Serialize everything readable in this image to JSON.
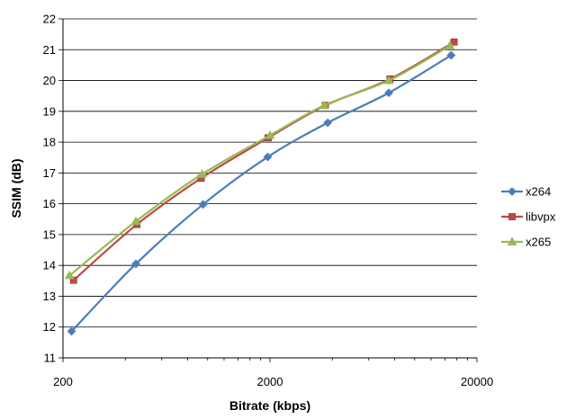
{
  "chart_data": {
    "type": "line",
    "title": "",
    "xlabel": "Bitrate (kbps)",
    "ylabel": "SSIM (dB)",
    "x_scale": "log",
    "xlim": [
      200,
      20000
    ],
    "ylim": [
      11,
      22
    ],
    "x_ticks": [
      200,
      2000,
      20000
    ],
    "x_tick_labels": [
      "200",
      "2000",
      "20000"
    ],
    "y_ticks": [
      11,
      12,
      13,
      14,
      15,
      16,
      17,
      18,
      19,
      20,
      21,
      22
    ],
    "y_tick_labels": [
      "11",
      "12",
      "13",
      "14",
      "15",
      "16",
      "17",
      "18",
      "19",
      "20",
      "21",
      "22"
    ],
    "grid": "horizontal",
    "legend_position": "right",
    "series": [
      {
        "name": "x264",
        "color": "#4a7ebb",
        "marker": "diamond",
        "x": [
          220,
          450,
          950,
          1950,
          3800,
          7500,
          15000
        ],
        "y": [
          11.86,
          14.05,
          15.98,
          17.52,
          18.63,
          19.6,
          20.82
        ]
      },
      {
        "name": "libvpx",
        "color": "#be4b48",
        "marker": "square",
        "x": [
          225,
          455,
          930,
          1960,
          3700,
          7600,
          15500
        ],
        "y": [
          13.52,
          15.33,
          16.83,
          18.14,
          19.19,
          20.05,
          21.25
        ]
      },
      {
        "name": "x265",
        "color": "#98b954",
        "marker": "triangle",
        "x": [
          215,
          450,
          940,
          2000,
          3650,
          7500,
          14800
        ],
        "y": [
          13.67,
          15.43,
          16.96,
          18.22,
          19.19,
          20.0,
          21.13
        ]
      }
    ]
  }
}
